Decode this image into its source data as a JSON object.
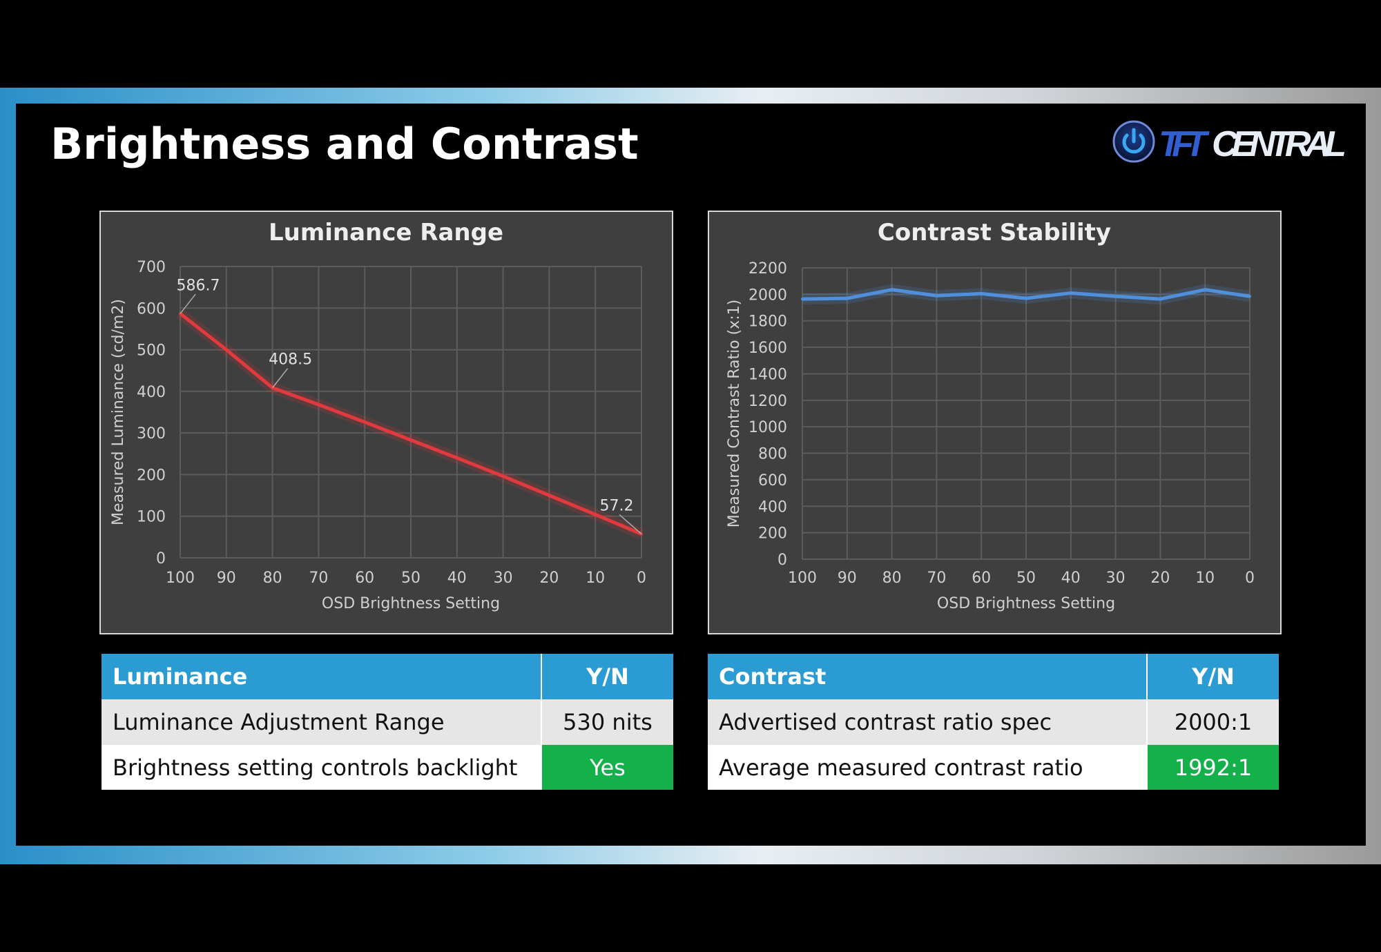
{
  "slide": {
    "title": "Brightness and Contrast",
    "logo_text": "TFT CENTRAL"
  },
  "colors": {
    "accent": "#2b9cd3",
    "good": "#14b04a",
    "luminance_line": "#e0393e",
    "contrast_line": "#4f8fdc"
  },
  "chart_data": [
    {
      "type": "line",
      "title": "Luminance Range",
      "xlabel": "OSD Brightness Setting",
      "ylabel": "Measured Luminance (cd/m2)",
      "x": [
        100,
        90,
        80,
        70,
        60,
        50,
        40,
        30,
        20,
        10,
        0
      ],
      "x_ticks": [
        "100",
        "90",
        "80",
        "70",
        "60",
        "50",
        "40",
        "30",
        "20",
        "10",
        "0"
      ],
      "y_ticks": [
        "0",
        "100",
        "200",
        "300",
        "400",
        "500",
        "600",
        "700"
      ],
      "ylim": [
        0,
        700
      ],
      "grid": true,
      "series": [
        {
          "name": "Luminance",
          "values": [
            586.7,
            500,
            408.5,
            368,
            326,
            283,
            240,
            196,
            150,
            104,
            57.2
          ]
        }
      ],
      "annotations": [
        {
          "index": 0,
          "text": "586.7"
        },
        {
          "index": 2,
          "text": "408.5"
        },
        {
          "index": 10,
          "text": "57.2"
        }
      ]
    },
    {
      "type": "line",
      "title": "Contrast Stability",
      "xlabel": "OSD Brightness Setting",
      "ylabel": "Measured Contrast Ratio (x:1)",
      "x": [
        100,
        90,
        80,
        70,
        60,
        50,
        40,
        30,
        20,
        10,
        0
      ],
      "x_ticks": [
        "100",
        "90",
        "80",
        "70",
        "60",
        "50",
        "40",
        "30",
        "20",
        "10",
        "0"
      ],
      "y_ticks": [
        "0",
        "200",
        "400",
        "600",
        "800",
        "1000",
        "1200",
        "1400",
        "1600",
        "1800",
        "2000",
        "2200"
      ],
      "ylim": [
        0,
        2200
      ],
      "grid": true,
      "series": [
        {
          "name": "Contrast",
          "values": [
            1965,
            1970,
            2035,
            1990,
            2005,
            1970,
            2010,
            1985,
            1965,
            2035,
            1985
          ]
        }
      ],
      "annotations": []
    }
  ],
  "tables": [
    {
      "header": [
        "Luminance",
        "Y/N"
      ],
      "rows": [
        [
          "Luminance Adjustment Range",
          "530 nits"
        ],
        [
          "Brightness setting controls backlight",
          "Yes"
        ]
      ]
    },
    {
      "header": [
        "Contrast",
        "Y/N"
      ],
      "rows": [
        [
          "Advertised contrast ratio spec",
          "2000:1"
        ],
        [
          "Average measured contrast ratio",
          "1992:1"
        ]
      ]
    }
  ]
}
